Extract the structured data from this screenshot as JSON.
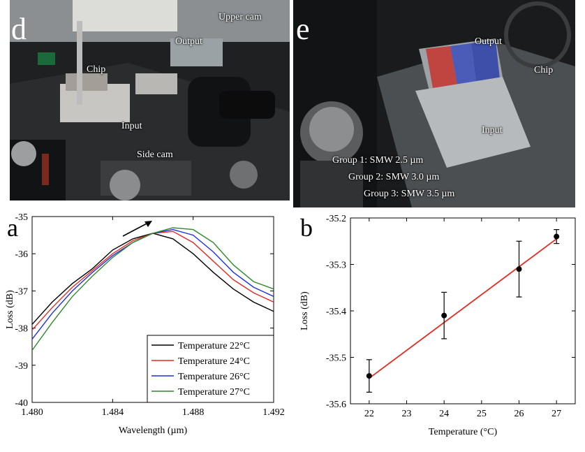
{
  "panel_d": {
    "letter": "d",
    "labels": {
      "upper_cam": "Upper cam",
      "output": "Output",
      "chip": "Chip",
      "input": "Input",
      "side_cam": "Side cam"
    }
  },
  "panel_e": {
    "letter": "e",
    "labels": {
      "output": "Output",
      "chip": "Chip",
      "input": "Input",
      "group1": "Group 1: SMW 2.5 µm",
      "group2": "Group 2: SMW 3.0 µm",
      "group3": "Group 3: SMW 3.5 µm"
    },
    "colors": {
      "red_band": "#c0443f",
      "blue_band": "#4a5bb8"
    }
  },
  "chart_data": [
    {
      "panel": "a",
      "type": "line",
      "xlabel": "Wavelength (µm)",
      "ylabel": "Loss (dB)",
      "xlim": [
        1.48,
        1.492
      ],
      "ylim": [
        -40,
        -35
      ],
      "xticks": [
        "1.480",
        "1.484",
        "1.488",
        "1.492"
      ],
      "yticks": [
        "-35",
        "-36",
        "-37",
        "-38",
        "-39",
        "-40"
      ],
      "series": [
        {
          "name": "Temperature 22°C",
          "color": "#000000",
          "x": [
            1.48,
            1.481,
            1.482,
            1.483,
            1.484,
            1.485,
            1.486,
            1.487,
            1.488,
            1.489,
            1.49,
            1.491,
            1.492
          ],
          "y": [
            -37.9,
            -37.3,
            -36.8,
            -36.4,
            -35.9,
            -35.6,
            -35.45,
            -35.6,
            -36.0,
            -36.5,
            -36.95,
            -37.3,
            -37.55
          ]
        },
        {
          "name": "Temperature 24°C",
          "color": "#e32b22",
          "x": [
            1.48,
            1.481,
            1.482,
            1.483,
            1.484,
            1.485,
            1.486,
            1.487,
            1.488,
            1.489,
            1.49,
            1.491,
            1.492
          ],
          "y": [
            -38.05,
            -37.45,
            -36.9,
            -36.45,
            -36.0,
            -35.65,
            -35.45,
            -35.4,
            -35.7,
            -36.2,
            -36.7,
            -37.05,
            -37.3
          ]
        },
        {
          "name": "Temperature 26°C",
          "color": "#1f2ee6",
          "x": [
            1.48,
            1.481,
            1.482,
            1.483,
            1.484,
            1.485,
            1.486,
            1.487,
            1.488,
            1.489,
            1.49,
            1.491,
            1.492
          ],
          "y": [
            -38.3,
            -37.6,
            -37.0,
            -36.5,
            -36.05,
            -35.7,
            -35.45,
            -35.35,
            -35.5,
            -35.95,
            -36.5,
            -36.9,
            -37.15
          ]
        },
        {
          "name": "Temperature 27°C",
          "color": "#2e8a2a",
          "x": [
            1.48,
            1.481,
            1.482,
            1.483,
            1.484,
            1.485,
            1.486,
            1.487,
            1.488,
            1.489,
            1.49,
            1.491,
            1.492
          ],
          "y": [
            -38.6,
            -37.85,
            -37.15,
            -36.6,
            -36.1,
            -35.7,
            -35.45,
            -35.3,
            -35.35,
            -35.7,
            -36.3,
            -36.75,
            -36.95
          ]
        }
      ],
      "annotations": [
        "arrow indicating redshift toward longer wavelength"
      ],
      "legend": "bottom-right",
      "grid": false
    },
    {
      "panel": "b",
      "type": "scatter",
      "xlabel": "Temperature (°C)",
      "ylabel": "Loss (dB)",
      "xlim": [
        21.5,
        27.5
      ],
      "ylim": [
        -35.6,
        -35.2
      ],
      "xticks": [
        "22",
        "23",
        "24",
        "25",
        "26",
        "27"
      ],
      "yticks": [
        "-35.2",
        "-35.3",
        "-35.4",
        "-35.5",
        "-35.6"
      ],
      "points": [
        {
          "x": 22,
          "y": -35.54,
          "err": 0.035
        },
        {
          "x": 24,
          "y": -35.41,
          "err": 0.05
        },
        {
          "x": 26,
          "y": -35.31,
          "err": 0.06
        },
        {
          "x": 27,
          "y": -35.24,
          "err": 0.015
        }
      ],
      "fit": {
        "x": [
          22,
          27
        ],
        "y": [
          -35.545,
          -35.245
        ],
        "color": "#e32b22"
      },
      "grid": false
    }
  ]
}
